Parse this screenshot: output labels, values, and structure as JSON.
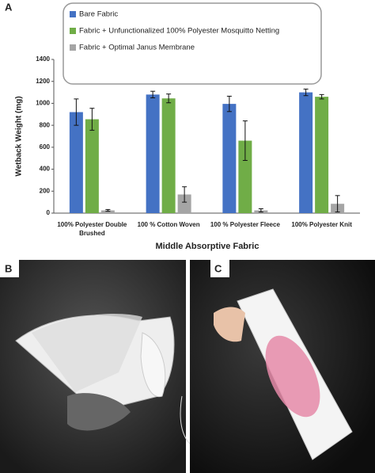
{
  "chart_data": {
    "type": "bar",
    "panel_label": "A",
    "ylabel": "Wetback Weight (mg)",
    "xlabel": "Middle Absorptive Fabric",
    "categories": [
      "100% Polyester Double Brushed",
      "100 % Cotton Woven",
      "100 % Polyester Fleece",
      "100% Polyester Knit"
    ],
    "series": [
      {
        "name": "Bare Fabric",
        "color": "#4472c4",
        "values": [
          920,
          1080,
          995,
          1100
        ],
        "errors": [
          120,
          30,
          70,
          30
        ]
      },
      {
        "name": "Fabric + Unfunctionalized 100% Polyester Mosquitto Netting",
        "color": "#70ad47",
        "values": [
          855,
          1045,
          660,
          1060
        ],
        "errors": [
          100,
          40,
          180,
          20
        ]
      },
      {
        "name": "Fabric + Optimal Janus Membrane",
        "color": "#a5a5a5",
        "values": [
          25,
          170,
          25,
          85
        ],
        "errors": [
          8,
          70,
          15,
          75
        ]
      }
    ],
    "ylim": [
      0,
      1400
    ],
    "yticks": [
      0,
      200,
      400,
      600,
      800,
      1000,
      1200,
      1400
    ],
    "grid": false,
    "legend": "top"
  },
  "photos": [
    {
      "label": "B"
    },
    {
      "label": "C"
    }
  ]
}
